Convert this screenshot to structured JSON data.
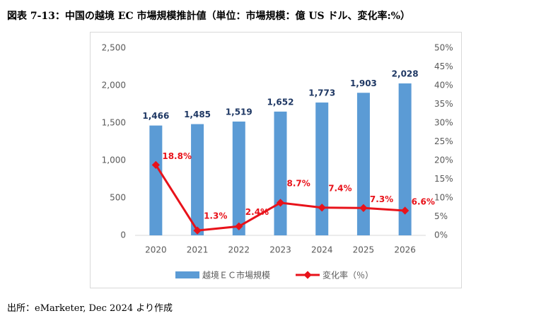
{
  "title": "図表 7-13：中国の越境 EC 市場規模推計値（単位：市場規模：億 US ドル、変化率:%）",
  "source": "出所：eMarketer, Dec 2024 より作成",
  "chart_data": {
    "type": "bar-line",
    "categories": [
      "2020",
      "2021",
      "2022",
      "2023",
      "2024",
      "2025",
      "2026"
    ],
    "series": [
      {
        "name": "越境ＥＣ市場規模",
        "type": "bar",
        "color": "#5b9bd5",
        "values": [
          1466,
          1485,
          1519,
          1652,
          1773,
          1903,
          2028
        ],
        "value_labels": [
          "1,466",
          "1,485",
          "1,519",
          "1,652",
          "1,773",
          "1,903",
          "2,028"
        ]
      },
      {
        "name": "変化率（％）",
        "type": "line",
        "axis": "y2",
        "color": "#e8121a",
        "values": [
          18.8,
          1.3,
          2.4,
          8.7,
          7.4,
          7.3,
          6.6
        ],
        "value_labels": [
          "18.8%",
          "1.3%",
          "2.4%",
          "8.7%",
          "7.4%",
          "7.3%",
          "6.6%"
        ]
      }
    ],
    "ylim": [
      0,
      2500
    ],
    "yticks": [
      0,
      500,
      {
        "value": 1000,
        "label": "1,000"
      },
      {
        "value": 1500,
        "label": "1,500"
      },
      {
        "value": 2000,
        "label": "2,000"
      },
      {
        "value": 2500,
        "label": "2,500"
      }
    ],
    "y2lim": [
      0,
      50
    ],
    "y2ticks": [
      {
        "value": 0,
        "label": "0%"
      },
      {
        "value": 5,
        "label": "5%"
      },
      {
        "value": 10,
        "label": "10%"
      },
      {
        "value": 15,
        "label": "15%"
      },
      {
        "value": 20,
        "label": "20%"
      },
      {
        "value": 25,
        "label": "25%"
      },
      {
        "value": 30,
        "label": "30%"
      },
      {
        "value": 35,
        "label": "35%"
      },
      {
        "value": 40,
        "label": "40%"
      },
      {
        "value": 45,
        "label": "45%"
      },
      {
        "value": 50,
        "label": "50%"
      }
    ],
    "legend": "bottom"
  }
}
